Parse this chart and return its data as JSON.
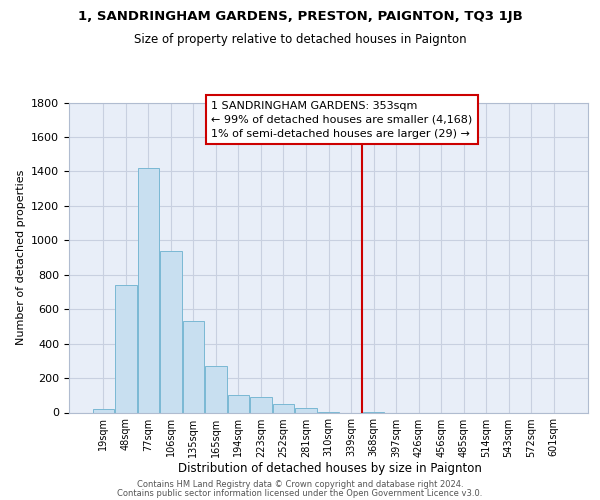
{
  "title": "1, SANDRINGHAM GARDENS, PRESTON, PAIGNTON, TQ3 1JB",
  "subtitle": "Size of property relative to detached houses in Paignton",
  "xlabel": "Distribution of detached houses by size in Paignton",
  "ylabel": "Number of detached properties",
  "bar_labels": [
    "19sqm",
    "48sqm",
    "77sqm",
    "106sqm",
    "135sqm",
    "165sqm",
    "194sqm",
    "223sqm",
    "252sqm",
    "281sqm",
    "310sqm",
    "339sqm",
    "368sqm",
    "397sqm",
    "426sqm",
    "456sqm",
    "485sqm",
    "514sqm",
    "543sqm",
    "572sqm",
    "601sqm"
  ],
  "bar_heights": [
    20,
    740,
    1420,
    940,
    530,
    270,
    100,
    90,
    50,
    25,
    5,
    0,
    5,
    0,
    0,
    0,
    0,
    0,
    0,
    0,
    0
  ],
  "bar_color": "#c8dff0",
  "bar_edge_color": "#7ab8d4",
  "vline_x": 11.5,
  "vline_color": "#cc0000",
  "annotation_title": "1 SANDRINGHAM GARDENS: 353sqm",
  "annotation_line1": "← 99% of detached houses are smaller (4,168)",
  "annotation_line2": "1% of semi-detached houses are larger (29) →",
  "footnote1": "Contains HM Land Registry data © Crown copyright and database right 2024.",
  "footnote2": "Contains public sector information licensed under the Open Government Licence v3.0.",
  "ylim": [
    0,
    1800
  ],
  "yticks": [
    0,
    200,
    400,
    600,
    800,
    1000,
    1200,
    1400,
    1600,
    1800
  ],
  "plot_bg_color": "#e8eef8",
  "fig_bg_color": "#ffffff",
  "grid_color": "#c8d0e0"
}
